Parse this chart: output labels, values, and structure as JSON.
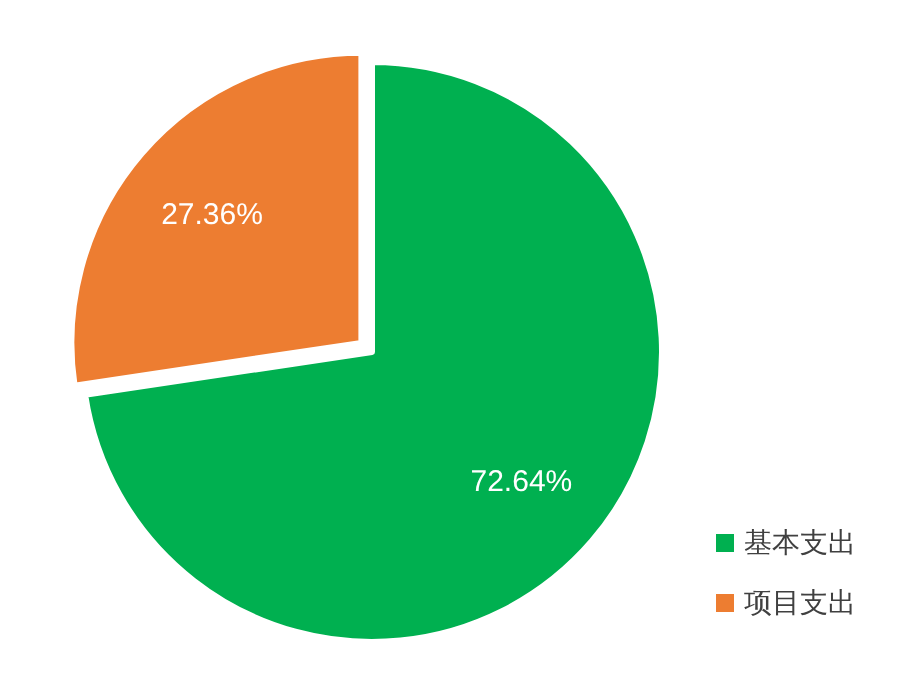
{
  "chart_data": {
    "type": "pie",
    "categories": [
      "基本支出",
      "项目支出"
    ],
    "values": [
      72.64,
      27.36
    ],
    "colors": [
      "#00b050",
      "#ed7d31"
    ],
    "value_labels": [
      "72.64%",
      "27.36%"
    ],
    "legend": "bottom right"
  }
}
